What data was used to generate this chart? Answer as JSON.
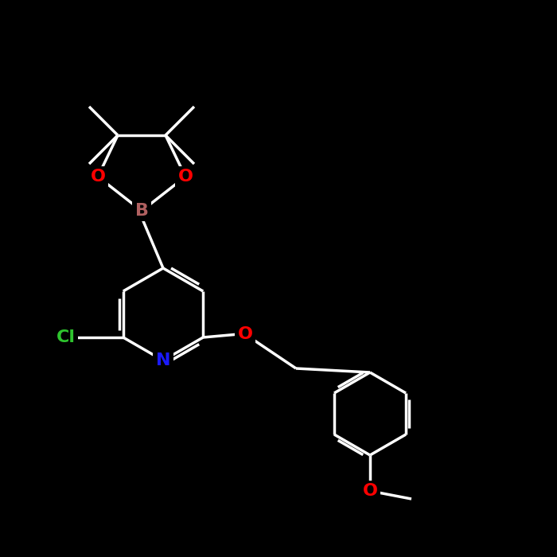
{
  "bg_color": "#000000",
  "bond_color": "#ffffff",
  "atom_colors": {
    "N": "#1a1aff",
    "O": "#ff0000",
    "B": "#b06060",
    "Cl": "#2ec42e",
    "C": "#ffffff"
  },
  "lw": 2.5,
  "fs": 16,
  "dbl_off": 5
}
